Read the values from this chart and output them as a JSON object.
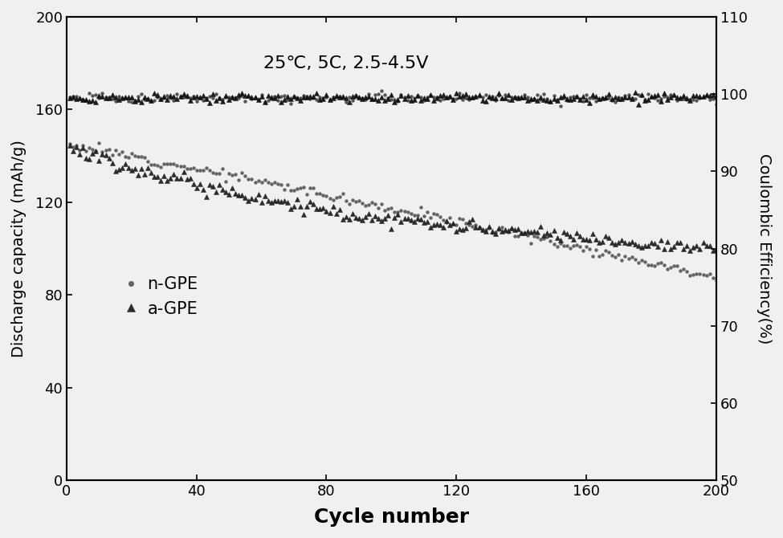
{
  "title_annotation": "25℃, 5C, 2.5-4.5V",
  "xlabel": "Cycle number",
  "ylabel_left": "Discharge capacity (mAh/g)",
  "ylabel_right": "Coulombic Efficiency(%)",
  "xlim": [
    0,
    200
  ],
  "ylim_left": [
    0,
    200
  ],
  "ylim_right": [
    50,
    110
  ],
  "xticks": [
    0,
    40,
    80,
    120,
    160,
    200
  ],
  "yticks_left": [
    0,
    40,
    80,
    120,
    160,
    200
  ],
  "yticks_right": [
    50,
    60,
    70,
    80,
    90,
    100,
    110
  ],
  "legend_labels": [
    "n-GPE",
    "a-GPE"
  ],
  "background_color": "#f0f0f0",
  "marker_color_ngpe": "#555555",
  "marker_color_agpe": "#222222",
  "ce_color_ngpe": "#444444",
  "ce_color_agpe": "#111111"
}
